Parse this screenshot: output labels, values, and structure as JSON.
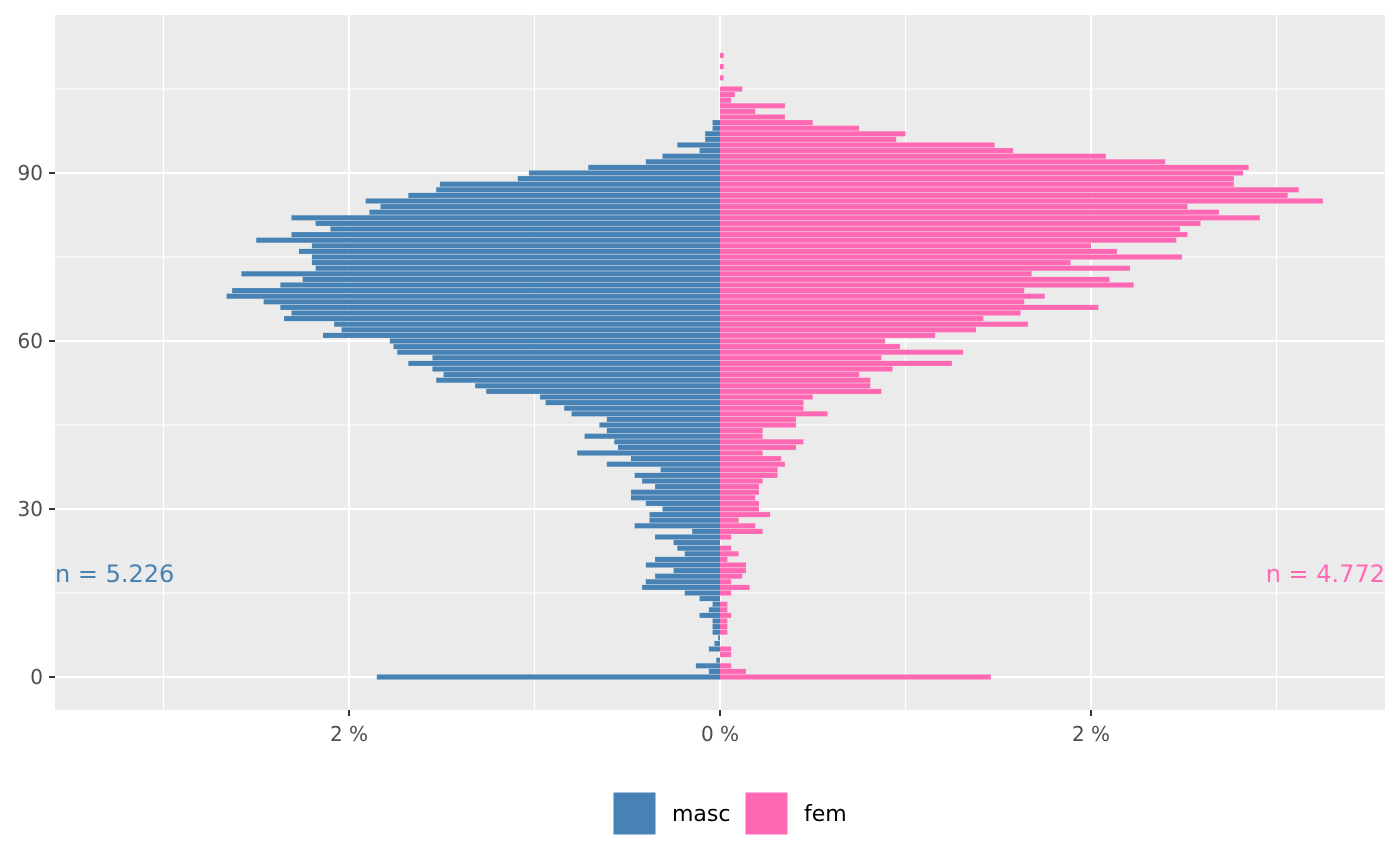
{
  "chart_data": {
    "type": "bar",
    "orientation": "horizontal",
    "title": "",
    "xlabel": "",
    "ylabel": "",
    "xlim": [
      -3.6,
      3.6
    ],
    "ylim": [
      -5,
      115
    ],
    "x_ticks": [
      -2,
      0,
      2
    ],
    "x_tick_labels": [
      "2 %",
      "0 %",
      "2 %"
    ],
    "y_ticks": [
      0,
      30,
      60,
      90
    ],
    "y_tick_labels": [
      "0",
      "30",
      "60",
      "90"
    ],
    "grid": true,
    "legend_position": "bottom",
    "ages": [
      0,
      1,
      2,
      3,
      4,
      5,
      6,
      7,
      8,
      9,
      10,
      11,
      12,
      13,
      14,
      15,
      16,
      17,
      18,
      19,
      20,
      21,
      22,
      23,
      24,
      25,
      26,
      27,
      28,
      29,
      30,
      31,
      32,
      33,
      34,
      35,
      36,
      37,
      38,
      39,
      40,
      41,
      42,
      43,
      44,
      45,
      46,
      47,
      48,
      49,
      50,
      51,
      52,
      53,
      54,
      55,
      56,
      57,
      58,
      59,
      60,
      61,
      62,
      63,
      64,
      65,
      66,
      67,
      68,
      69,
      70,
      71,
      72,
      73,
      74,
      75,
      76,
      77,
      78,
      79,
      80,
      81,
      82,
      83,
      84,
      85,
      86,
      87,
      88,
      89,
      90,
      91,
      92,
      93,
      94,
      95,
      96,
      97,
      98,
      99,
      100,
      101,
      102,
      103,
      104,
      105,
      106,
      107,
      108,
      109,
      110,
      111
    ],
    "series": [
      {
        "name": "masc",
        "color": "#4682B4",
        "values": [
          1.85,
          0.06,
          0.13,
          0.02,
          0,
          0.06,
          0.03,
          0.01,
          0.04,
          0.04,
          0.04,
          0.11,
          0.06,
          0.04,
          0.11,
          0.19,
          0.42,
          0.4,
          0.35,
          0.25,
          0.4,
          0.35,
          0.19,
          0.23,
          0.25,
          0.35,
          0.15,
          0.46,
          0.38,
          0.38,
          0.31,
          0.4,
          0.48,
          0.48,
          0.35,
          0.42,
          0.46,
          0.32,
          0.61,
          0.48,
          0.77,
          0.55,
          0.57,
          0.73,
          0.61,
          0.65,
          0.61,
          0.8,
          0.84,
          0.94,
          0.97,
          1.26,
          1.32,
          1.53,
          1.49,
          1.55,
          1.68,
          1.55,
          1.74,
          1.76,
          1.78,
          2.14,
          2.04,
          2.08,
          2.35,
          2.31,
          2.37,
          2.46,
          2.66,
          2.63,
          2.37,
          2.25,
          2.58,
          2.18,
          2.2,
          2.2,
          2.27,
          2.2,
          2.5,
          2.31,
          2.1,
          2.18,
          2.31,
          1.89,
          1.83,
          1.91,
          1.68,
          1.53,
          1.51,
          1.09,
          1.03,
          0.71,
          0.4,
          0.31,
          0.11,
          0.23,
          0.08,
          0.08,
          0.04,
          0.04,
          0,
          0,
          0,
          0,
          0,
          0,
          0,
          0,
          0,
          0,
          0,
          0
        ]
      },
      {
        "name": "fem",
        "color": "#FF69B4",
        "values": [
          1.46,
          0.14,
          0.06,
          0,
          0.06,
          0.06,
          0,
          0,
          0.04,
          0.04,
          0.04,
          0.06,
          0.04,
          0.04,
          0,
          0.06,
          0.16,
          0.06,
          0.12,
          0.14,
          0.14,
          0.04,
          0.1,
          0.06,
          0,
          0.06,
          0.23,
          0.19,
          0.1,
          0.27,
          0.21,
          0.21,
          0.19,
          0.21,
          0.21,
          0.23,
          0.31,
          0.31,
          0.35,
          0.33,
          0.23,
          0.41,
          0.45,
          0.23,
          0.23,
          0.41,
          0.41,
          0.58,
          0.45,
          0.45,
          0.5,
          0.87,
          0.81,
          0.81,
          0.75,
          0.93,
          1.25,
          0.87,
          1.31,
          0.97,
          0.89,
          1.16,
          1.38,
          1.66,
          1.42,
          1.62,
          2.04,
          1.64,
          1.75,
          1.64,
          2.23,
          2.1,
          1.68,
          2.21,
          1.89,
          2.49,
          2.14,
          2.0,
          2.46,
          2.52,
          2.48,
          2.59,
          2.91,
          2.69,
          2.52,
          3.25,
          3.06,
          3.12,
          2.77,
          2.77,
          2.82,
          2.85,
          2.4,
          2.08,
          1.58,
          1.48,
          0.95,
          1.0,
          0.75,
          0.5,
          0.35,
          0.19,
          0.35,
          0.06,
          0.08,
          0.12,
          0,
          0.02,
          0,
          0.02,
          0,
          0.02
        ]
      }
    ],
    "annotations": [
      {
        "text": "n = 5.226",
        "color": "#4682B4",
        "side": "left"
      },
      {
        "text": "n = 4.772",
        "color": "#FF69B4",
        "side": "right"
      }
    ],
    "legend": [
      {
        "label": "masc",
        "color": "#4682B4"
      },
      {
        "label": "fem",
        "color": "#FF69B4"
      }
    ]
  }
}
